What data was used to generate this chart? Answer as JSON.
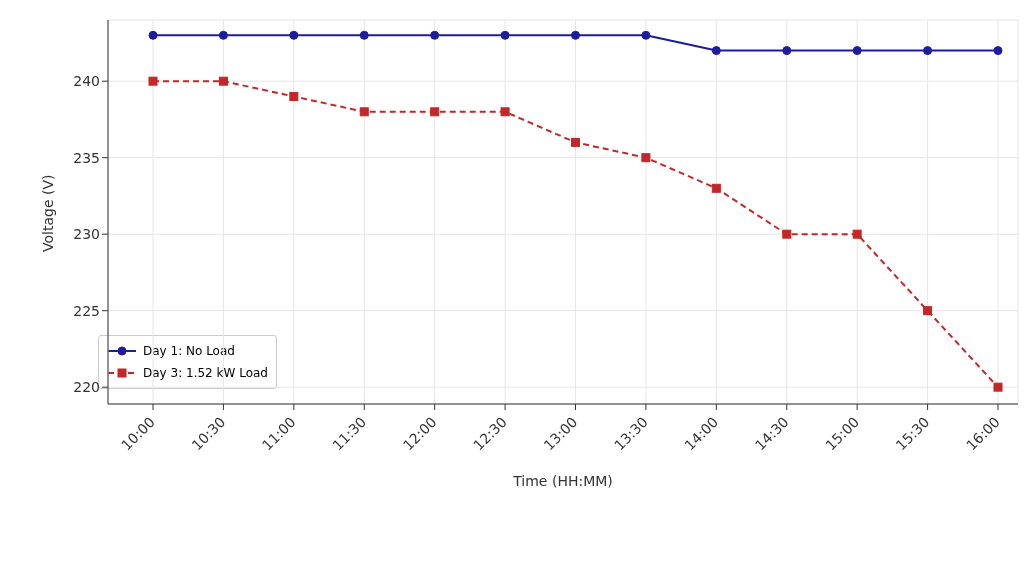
{
  "chart_data": {
    "type": "line",
    "xlabel": "Time (HH:MM)",
    "ylabel": "Voltage (V)",
    "categories": [
      "10:00",
      "10:30",
      "11:00",
      "11:30",
      "12:00",
      "12:30",
      "13:00",
      "13:30",
      "14:00",
      "14:30",
      "15:00",
      "15:30",
      "16:00"
    ],
    "series": [
      {
        "name": "Day 1: No Load",
        "color": "#1c1c9c",
        "marker": "circle",
        "line_style": "solid",
        "values": [
          243,
          243,
          243,
          243,
          243,
          243,
          243,
          243,
          242,
          242,
          242,
          242,
          242
        ]
      },
      {
        "name": "Day 3: 1.52 kW Load",
        "color": "#c42727",
        "marker": "square",
        "line_style": "dashed",
        "values": [
          240,
          240,
          239,
          238,
          238,
          238,
          236,
          235,
          233,
          230,
          230,
          225,
          220
        ]
      }
    ],
    "ylim": [
      218.9,
      244
    ],
    "yticks": [
      220,
      225,
      230,
      235,
      240
    ],
    "grid": true,
    "legend": "bottom left"
  }
}
